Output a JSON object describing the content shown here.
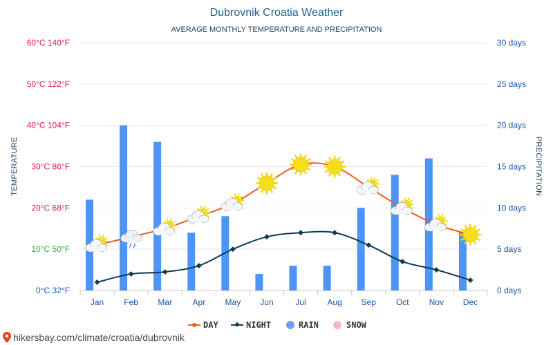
{
  "chart_data": {
    "type": "combo",
    "title": "Dubrovnik Croatia Weather",
    "subtitle": "AVERAGE MONTHLY TEMPERATURE AND PRECIPITATION",
    "left_axis_label": "TEMPERATURE",
    "right_axis_label": "PRECIPITATION",
    "categories": [
      "Jan",
      "Feb",
      "Mar",
      "Apr",
      "May",
      "Jun",
      "Jul",
      "Aug",
      "Sep",
      "Oct",
      "Nov",
      "Dec"
    ],
    "temp_ticks": [
      {
        "c": 0,
        "label": "0°C 32°F",
        "color": "#1a56c4"
      },
      {
        "c": 10,
        "label": "10°C 50°F",
        "color": "#2fae3a"
      },
      {
        "c": 20,
        "label": "20°C 68°F",
        "color": "#e0115f"
      },
      {
        "c": 30,
        "label": "30°C 86°F",
        "color": "#e0115f"
      },
      {
        "c": 40,
        "label": "40°C 104°F",
        "color": "#e0115f"
      },
      {
        "c": 50,
        "label": "50°C 122°F",
        "color": "#e0115f"
      },
      {
        "c": 60,
        "label": "60°C 140°F",
        "color": "#e0115f"
      }
    ],
    "temp_range": [
      0,
      60
    ],
    "precip_ticks": [
      {
        "v": 0,
        "label": "0 days"
      },
      {
        "v": 5,
        "label": "5 days"
      },
      {
        "v": 10,
        "label": "10 days"
      },
      {
        "v": 15,
        "label": "15 days"
      },
      {
        "v": 20,
        "label": "20 days"
      },
      {
        "v": 25,
        "label": "25 days"
      },
      {
        "v": 30,
        "label": "30 days"
      }
    ],
    "precip_range": [
      0,
      30
    ],
    "series": [
      {
        "name": "DAY",
        "type": "line",
        "color": "#f05a1a",
        "values": [
          11,
          13,
          15,
          18,
          21,
          26,
          30.5,
          30,
          25,
          20,
          16,
          13.5
        ]
      },
      {
        "name": "NIGHT",
        "type": "line",
        "color": "#0e3a52",
        "values": [
          2,
          4,
          4.5,
          6,
          10,
          13,
          14,
          14,
          11,
          7,
          5,
          2.5
        ]
      },
      {
        "name": "RAIN",
        "type": "bar",
        "color": "#4d94f5",
        "values": [
          11,
          20,
          18,
          7,
          9,
          2,
          3,
          3,
          10,
          14,
          16,
          7
        ]
      },
      {
        "name": "SNOW",
        "type": "bar",
        "color": "#f7b6c8",
        "values": [
          0,
          0,
          0,
          0,
          0,
          0,
          0,
          0,
          0,
          0,
          0,
          0
        ]
      }
    ],
    "weather_icons": [
      "partly-cloudy-icon",
      "rain-cloud-icon",
      "partly-cloudy-icon",
      "partly-cloudy-icon",
      "partly-cloudy-icon",
      "sun-icon",
      "sun-icon",
      "sun-icon",
      "partly-cloudy-icon",
      "partly-cloudy-icon",
      "partly-cloudy-icon",
      "sun-icon"
    ],
    "grid": true,
    "legend_placement": "bottom-center"
  },
  "footer": {
    "pin_icon": "location-pin-icon",
    "url": "hikersbay.com/climate/croatia/dubrovnik"
  }
}
